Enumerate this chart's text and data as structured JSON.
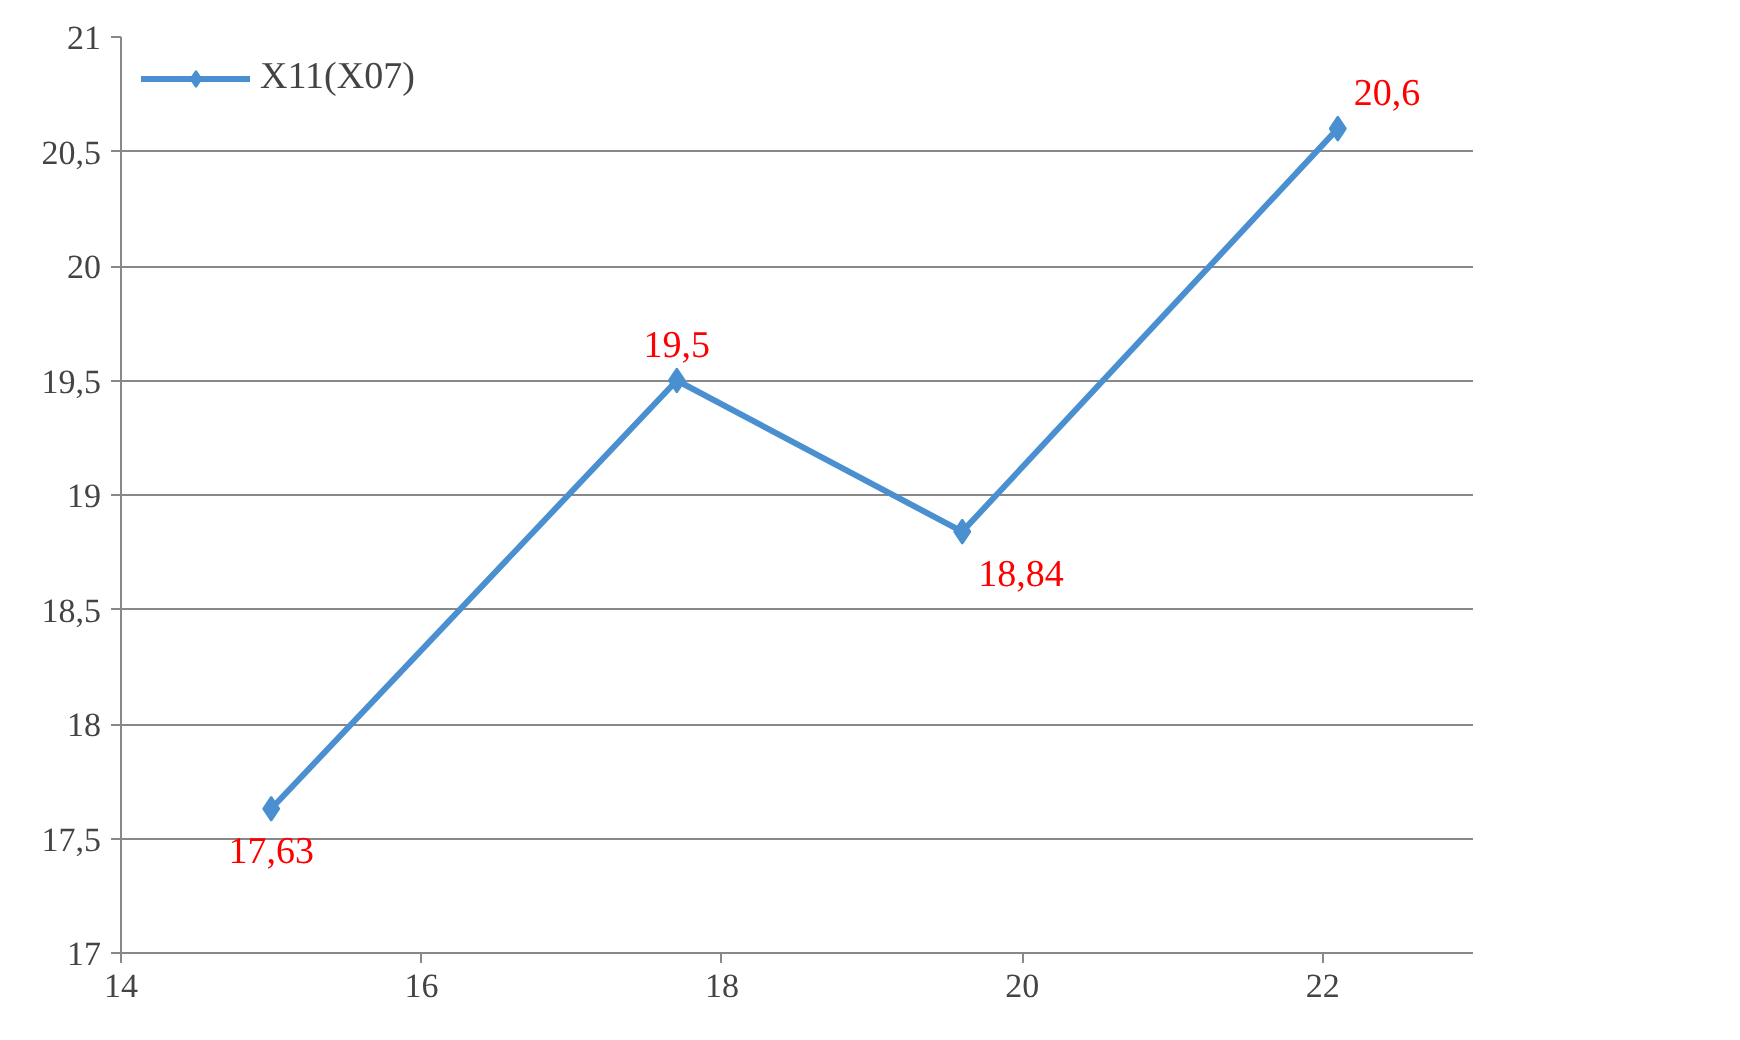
{
  "chart_data": {
    "type": "line",
    "x": [
      15,
      17.7,
      19.6,
      22.1
    ],
    "series": [
      {
        "name": "X11(X07)",
        "color": "#4a90d0",
        "values": [
          17.63,
          19.5,
          18.84,
          20.6
        ],
        "value_labels": [
          "17,63",
          "19,5",
          "18,84",
          "20,6"
        ]
      }
    ],
    "xlim": [
      14,
      23
    ],
    "xticks": [
      14,
      16,
      18,
      20,
      22
    ],
    "ylim": [
      17,
      21
    ],
    "yticks": [
      17,
      {
        "value": 17.5,
        "label": "17,5"
      },
      18,
      {
        "value": 18.5,
        "label": "18,5"
      },
      19,
      {
        "value": 19.5,
        "label": "19,5"
      },
      20,
      {
        "value": 20.5,
        "label": "20,5"
      },
      21
    ],
    "grid": "y",
    "legend": "top left",
    "marker": "diamond",
    "line_style": "solid"
  }
}
